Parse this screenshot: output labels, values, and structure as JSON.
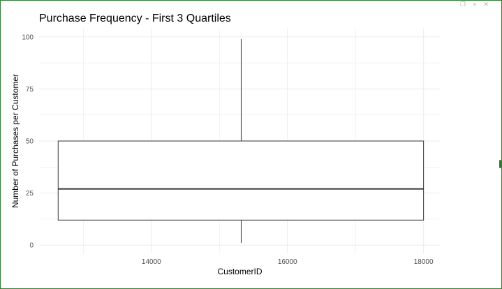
{
  "window": {
    "controls": {
      "popout_icon": "popout-icon",
      "collapse_icon": "collapse-icon",
      "close_icon": "close-icon"
    }
  },
  "chart_data": {
    "type": "boxplot",
    "title": "Purchase Frequency - First 3 Quartiles",
    "xlabel": "CustomerID",
    "ylabel": "Number of Purchases per Customer",
    "xlim": [
      12350,
      18250
    ],
    "ylim": [
      -4,
      104
    ],
    "xticks": [
      14000,
      16000,
      18000
    ],
    "xtick_labels": [
      "14000",
      "16000",
      "18000"
    ],
    "yticks": [
      0,
      25,
      50,
      75,
      100
    ],
    "ytick_labels": [
      "0",
      "25",
      "50",
      "75",
      "100"
    ],
    "x_minor_grid": [
      13000,
      15000,
      17000
    ],
    "y_minor_grid": [
      12.5,
      37.5,
      62.5,
      87.5
    ],
    "grid": true,
    "box": {
      "x_left": 12630,
      "x_right": 18000,
      "x_center": 15320,
      "q1": 12,
      "median": 27,
      "q3": 50,
      "whisker_low": 1,
      "whisker_high": 99
    },
    "colors": {
      "box_fill": "#ffffff",
      "box_line": "#333333",
      "grid": "#ebebeb",
      "background": "#ffffff"
    }
  }
}
